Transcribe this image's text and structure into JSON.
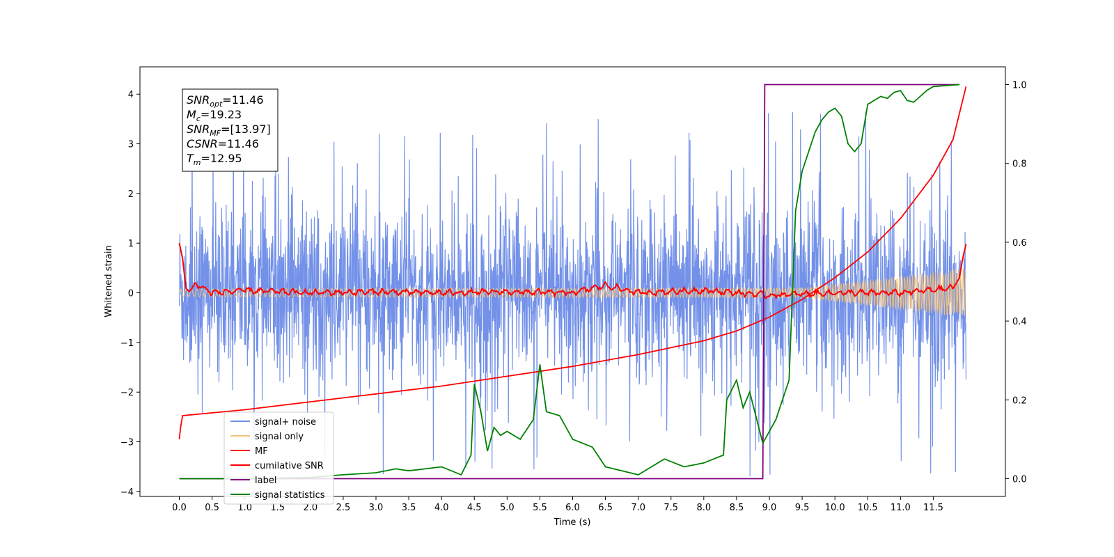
{
  "chart_data": {
    "type": "line",
    "xlabel": "Time (s)",
    "ylabel": "Whitened strain",
    "xlim": [
      -0.6,
      12.6
    ],
    "ylim": [
      -4.1,
      4.55
    ],
    "y2lim": [
      -0.045,
      1.045
    ],
    "xticks": [
      "0.0",
      "0.5",
      "1.0",
      "1.5",
      "2.0",
      "2.5",
      "3.0",
      "3.5",
      "4.0",
      "4.5",
      "5.0",
      "5.5",
      "6.0",
      "6.5",
      "7.0",
      "7.5",
      "8.0",
      "8.5",
      "9.0",
      "9.5",
      "10.0",
      "10.5",
      "11.0",
      "11.5"
    ],
    "yticks": [
      "−4",
      "−3",
      "−2",
      "−1",
      "0",
      "1",
      "2",
      "3",
      "4"
    ],
    "y2ticks": [
      "0.0",
      "0.2",
      "0.4",
      "0.6",
      "0.8",
      "1.0"
    ],
    "annotation": [
      {
        "main": "SNR",
        "sub": "opt",
        "rest": "=11.46"
      },
      {
        "main": "M",
        "sub": "c",
        "rest": "=19.23"
      },
      {
        "main": "SNR",
        "sub": "MF",
        "rest": "=[13.97]"
      },
      {
        "main": "CSNR",
        "sub": "",
        "rest": "=11.46"
      },
      {
        "main": "T",
        "sub": "m",
        "rest": "=12.95"
      }
    ],
    "series": [
      {
        "name": "signal+ noise",
        "color": "#7391e8",
        "axis": "left",
        "x_range": [
          0,
          12
        ],
        "amplitude_range": [
          1.5,
          3.7
        ]
      },
      {
        "name": "signal only",
        "color": "#f5c27a",
        "axis": "left",
        "x_range": [
          0,
          12
        ],
        "envelope": [
          [
            0,
            0.08
          ],
          [
            9.5,
            0.1
          ],
          [
            12,
            0.5
          ]
        ]
      },
      {
        "name": "MF",
        "color": "#ff0000",
        "axis": "left",
        "x": [
          0,
          0.05,
          0.1,
          0.15,
          0.25,
          0.5,
          1,
          2,
          3,
          4,
          5,
          6,
          6.5,
          7,
          8,
          9,
          10,
          11,
          11.8,
          11.9,
          11.95,
          12
        ],
        "y": [
          1.0,
          0.7,
          0.1,
          0.02,
          0.18,
          0.0,
          0.05,
          0.0,
          0.02,
          0.0,
          0.02,
          0.0,
          0.15,
          0.0,
          0.05,
          -0.05,
          0.0,
          0.0,
          0.1,
          0.3,
          0.7,
          0.98
        ]
      },
      {
        "name": "cumilative SNR",
        "color": "#ff0000",
        "axis": "right",
        "x": [
          0,
          0.02,
          0.05,
          1,
          2,
          3,
          4,
          5,
          6,
          7,
          8,
          8.5,
          9,
          9.5,
          10,
          10.5,
          11,
          11.5,
          11.8,
          12
        ],
        "y": [
          0.1,
          0.13,
          0.16,
          0.175,
          0.195,
          0.215,
          0.235,
          0.26,
          0.285,
          0.315,
          0.35,
          0.375,
          0.41,
          0.455,
          0.51,
          0.575,
          0.66,
          0.77,
          0.86,
          0.995
        ]
      },
      {
        "name": "label",
        "color": "#800080",
        "axis": "right",
        "x": [
          0,
          8.9,
          8.93,
          11.9
        ],
        "y": [
          0,
          0,
          1,
          1
        ]
      },
      {
        "name": "signal statistics",
        "color": "#008000",
        "axis": "right",
        "x": [
          0,
          1,
          2,
          2.5,
          3,
          3.3,
          3.5,
          4,
          4.3,
          4.45,
          4.5,
          4.6,
          4.7,
          4.8,
          4.9,
          5.0,
          5.2,
          5.4,
          5.5,
          5.6,
          5.8,
          6.0,
          6.3,
          6.5,
          7.0,
          7.4,
          7.7,
          8.0,
          8.3,
          8.35,
          8.5,
          8.6,
          8.7,
          8.9,
          9.1,
          9.2,
          9.3,
          9.4,
          9.5,
          9.7,
          9.8,
          9.9,
          10.0,
          10.1,
          10.2,
          10.3,
          10.4,
          10.5,
          10.6,
          10.7,
          10.8,
          10.9,
          11.0,
          11.1,
          11.2,
          11.3,
          11.4,
          11.5,
          11.9
        ],
        "y": [
          0.0,
          0.0,
          0.003,
          0.01,
          0.015,
          0.025,
          0.02,
          0.03,
          0.01,
          0.06,
          0.24,
          0.17,
          0.07,
          0.13,
          0.11,
          0.12,
          0.1,
          0.15,
          0.29,
          0.17,
          0.16,
          0.1,
          0.08,
          0.03,
          0.01,
          0.05,
          0.03,
          0.04,
          0.06,
          0.2,
          0.25,
          0.18,
          0.22,
          0.09,
          0.15,
          0.2,
          0.25,
          0.68,
          0.78,
          0.88,
          0.91,
          0.93,
          0.94,
          0.92,
          0.85,
          0.83,
          0.85,
          0.95,
          0.96,
          0.97,
          0.965,
          0.98,
          0.985,
          0.96,
          0.955,
          0.97,
          0.985,
          0.995,
          1.0
        ]
      }
    ],
    "legend_position": "lower-left"
  }
}
